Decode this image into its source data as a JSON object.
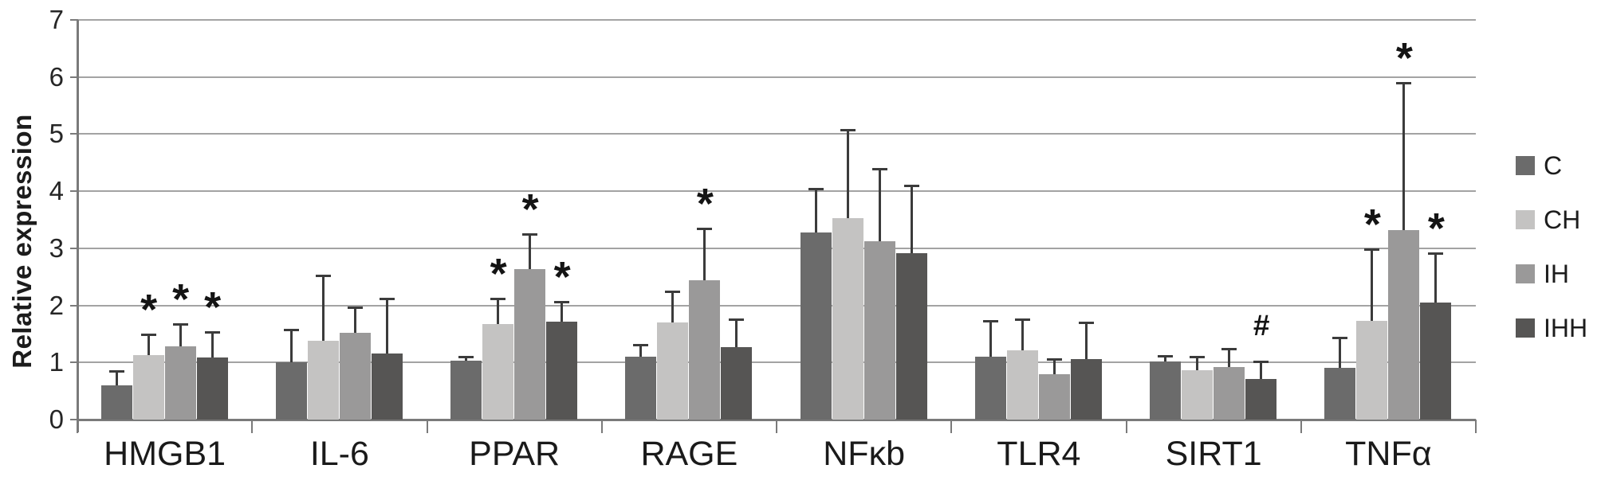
{
  "chart_data": {
    "type": "bar",
    "title": "",
    "xlabel": "",
    "ylabel": "Relative expression",
    "ylim": [
      0,
      7
    ],
    "ytick_step": 1,
    "grid": true,
    "legend_position": "right",
    "categories": [
      "HMGB1",
      "IL-6",
      "PPAR",
      "RAGE",
      "NFκb",
      "TLR4",
      "SIRT1",
      "TNFα"
    ],
    "series": [
      {
        "name": "C",
        "color": "#6b6b6b",
        "values": [
          0.6,
          1.0,
          1.03,
          1.1,
          3.27,
          1.1,
          1.02,
          0.9
        ],
        "errors_up": [
          0.25,
          0.58,
          0.07,
          0.21,
          0.78,
          0.63,
          0.1,
          0.54
        ],
        "markers": [
          "",
          "",
          "",
          "",
          "",
          "",
          "",
          ""
        ]
      },
      {
        "name": "CH",
        "color": "#c4c3c2",
        "values": [
          1.13,
          1.38,
          1.68,
          1.7,
          3.53,
          1.22,
          0.86,
          1.73
        ],
        "errors_up": [
          0.36,
          1.15,
          0.44,
          0.55,
          1.54,
          0.54,
          0.24,
          1.26
        ],
        "markers": [
          "*",
          "",
          "*",
          "",
          "",
          "",
          "",
          "*"
        ]
      },
      {
        "name": "IH",
        "color": "#9a9999",
        "values": [
          1.28,
          1.52,
          2.64,
          2.44,
          3.12,
          0.79,
          0.92,
          3.32
        ],
        "errors_up": [
          0.4,
          0.45,
          0.61,
          0.9,
          1.27,
          0.27,
          0.32,
          2.58
        ],
        "markers": [
          "*",
          "",
          "*",
          "*",
          "",
          "",
          "",
          "*"
        ]
      },
      {
        "name": "IHH",
        "color": "#565554",
        "values": [
          1.09,
          1.16,
          1.71,
          1.27,
          2.91,
          1.06,
          0.71,
          2.05
        ],
        "errors_up": [
          0.44,
          0.96,
          0.35,
          0.49,
          1.19,
          0.64,
          0.31,
          0.87
        ],
        "markers": [
          "*",
          "",
          "*",
          "",
          "",
          "",
          "#",
          "*"
        ]
      }
    ],
    "legend": [
      "C",
      "CH",
      "IH",
      "IHH"
    ],
    "significance_symbols": [
      "*",
      "#"
    ]
  }
}
